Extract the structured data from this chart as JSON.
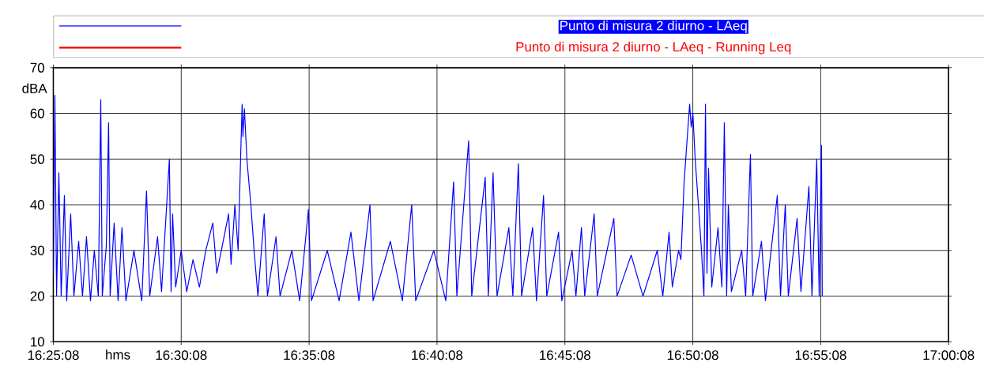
{
  "chart_data": {
    "type": "line",
    "xlabel": "hms",
    "ylabel": "dBA",
    "xlim": [
      16.418889,
      17.002222
    ],
    "ylim": [
      10,
      70
    ],
    "xticks": [
      {
        "value": 16.418889,
        "label": "16:25:08"
      },
      {
        "value": 16.502222,
        "label": "16:30:08"
      },
      {
        "value": 16.585556,
        "label": "16:35:08"
      },
      {
        "value": 16.668889,
        "label": "16:40:08"
      },
      {
        "value": 16.752222,
        "label": "16:45:08"
      },
      {
        "value": 16.835556,
        "label": "16:50:08"
      },
      {
        "value": 16.918889,
        "label": "16:55:08"
      },
      {
        "value": 17.002222,
        "label": "17:00:08"
      }
    ],
    "yticks": [
      10,
      20,
      30,
      40,
      50,
      60,
      70
    ],
    "grid": true,
    "legend": "top",
    "marker": "none",
    "line_style": "solid",
    "series": [
      {
        "name": "Punto di misura 2 diurno - LAeq",
        "color": "#0000ff",
        "x": [
          16.4189,
          16.4199,
          16.421,
          16.4225,
          16.424,
          16.4261,
          16.4276,
          16.4302,
          16.4323,
          16.4354,
          16.4379,
          16.4405,
          16.4431,
          16.4456,
          16.4482,
          16.4498,
          16.4508,
          16.4534,
          16.4549,
          16.4559,
          16.4585,
          16.4611,
          16.4636,
          16.4662,
          16.4714,
          16.4765,
          16.4796,
          16.4817,
          16.4868,
          16.4894,
          16.4945,
          16.4956,
          16.4966,
          16.4986,
          16.5022,
          16.5058,
          16.5099,
          16.5141,
          16.5182,
          16.5228,
          16.5254,
          16.5331,
          16.5347,
          16.5372,
          16.5393,
          16.5409,
          16.5419,
          16.5424,
          16.5434,
          16.545,
          16.5476,
          16.5497,
          16.5522,
          16.5563,
          16.5584,
          16.564,
          16.5666,
          16.5743,
          16.5794,
          16.5851,
          16.5871,
          16.5974,
          16.6051,
          16.6128,
          16.618,
          16.6252,
          16.6272,
          16.6385,
          16.6463,
          16.6524,
          16.655,
          16.6668,
          16.6746,
          16.6797,
          16.6818,
          16.6895,
          16.6915,
          16.7003,
          16.7023,
          16.7054,
          16.708,
          16.7157,
          16.7183,
          16.7219,
          16.724,
          16.7312,
          16.7337,
          16.7383,
          16.7404,
          16.7481,
          16.7502,
          16.7569,
          16.7594,
          16.763,
          16.7651,
          16.7713,
          16.7733,
          16.7841,
          16.7862,
          16.7954,
          16.8031,
          16.8124,
          16.816,
          16.8201,
          16.8222,
          16.8263,
          16.8278,
          16.8299,
          16.832,
          16.8335,
          16.8345,
          16.8356,
          16.8371,
          16.8392,
          16.8412,
          16.8428,
          16.8438,
          16.8448,
          16.8458,
          16.8479,
          16.852,
          16.8545,
          16.8561,
          16.8576,
          16.8587,
          16.8607,
          16.8674,
          16.87,
          16.8731,
          16.8746,
          16.8803,
          16.8829,
          16.8906,
          16.8927,
          16.8958,
          16.8978,
          16.9035,
          16.906,
          16.9112,
          16.9132,
          16.9163,
          16.9179,
          16.9194,
          16.9199
        ],
        "values": [
          25,
          64,
          20,
          47,
          20,
          42,
          19,
          38,
          20,
          32,
          20,
          33,
          19,
          30,
          20,
          63,
          20,
          31,
          58,
          20,
          36,
          19,
          35,
          19,
          30,
          19,
          43,
          20,
          33,
          21,
          50,
          21,
          38,
          22,
          30,
          21,
          28,
          22,
          30,
          36,
          25,
          38,
          27,
          40,
          30,
          50,
          62,
          55,
          61,
          50,
          40,
          30,
          20,
          38,
          20,
          33,
          20,
          30,
          19,
          39,
          19,
          30,
          19,
          34,
          19,
          40,
          19,
          32,
          19,
          40,
          19,
          30,
          19,
          45,
          20,
          54,
          20,
          46,
          20,
          47,
          20,
          35,
          20,
          49,
          20,
          35,
          19,
          42,
          20,
          34,
          19,
          30,
          20,
          35,
          20,
          38,
          20,
          37,
          20,
          29,
          20,
          30,
          20,
          34,
          22,
          30,
          28,
          45,
          55,
          62,
          57,
          60,
          50,
          40,
          30,
          20,
          62,
          25,
          48,
          22,
          35,
          22,
          58,
          20,
          40,
          21,
          30,
          20,
          51,
          20,
          32,
          19,
          42,
          20,
          40,
          20,
          37,
          21,
          44,
          20,
          50,
          20,
          53,
          20
        ]
      },
      {
        "name": "Punto di misura 2 diurno - LAeq - Running Leq",
        "color": "#ff0000"
      }
    ]
  }
}
